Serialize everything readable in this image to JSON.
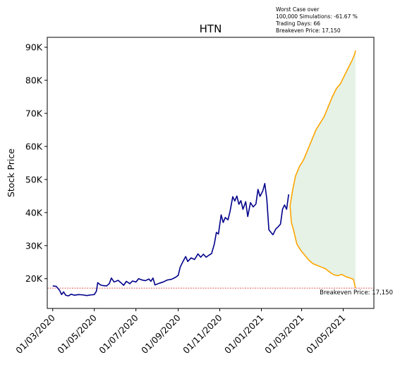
{
  "chart_data": {
    "type": "line",
    "title": "HTN",
    "xlabel": "",
    "ylabel": "Stock Price",
    "grid": false,
    "legend": "none",
    "x_date_range": [
      "2020-02-22",
      "2021-06-15"
    ],
    "ylim": [
      11000,
      93000
    ],
    "x_ticks": [
      {
        "date": "2020-03-01",
        "label": "01/03/2020"
      },
      {
        "date": "2020-05-01",
        "label": "01/05/2020"
      },
      {
        "date": "2020-07-01",
        "label": "01/07/2020"
      },
      {
        "date": "2020-09-01",
        "label": "01/09/2020"
      },
      {
        "date": "2020-11-01",
        "label": "01/11/2020"
      },
      {
        "date": "2021-01-01",
        "label": "01/01/2021"
      },
      {
        "date": "2021-03-01",
        "label": "01/03/2021"
      },
      {
        "date": "2021-05-01",
        "label": "01/05/2021"
      }
    ],
    "y_ticks": [
      {
        "value": 20000,
        "label": "20K"
      },
      {
        "value": 30000,
        "label": "30K"
      },
      {
        "value": 40000,
        "label": "40K"
      },
      {
        "value": 50000,
        "label": "50K"
      },
      {
        "value": 60000,
        "label": "60K"
      },
      {
        "value": 70000,
        "label": "70K"
      },
      {
        "value": 80000,
        "label": "80K"
      },
      {
        "value": 90000,
        "label": "90K"
      }
    ],
    "annotation_lines": [
      "Worst Case over",
      "100,000 Simulations: -61.67 %",
      "Trading Days: 66",
      "Breakeven Price: 17,150"
    ],
    "breakeven": {
      "value": 17150,
      "label": "Breakeven Price: 17,150"
    },
    "colors": {
      "history": "#00008b",
      "projection": "#ffa500",
      "band": "#e5f2e5",
      "breakeven": "#d62728"
    },
    "series": [
      {
        "role": "history",
        "points": [
          [
            "2020-03-01",
            17800
          ],
          [
            "2020-03-06",
            17700
          ],
          [
            "2020-03-11",
            16500
          ],
          [
            "2020-03-14",
            15200
          ],
          [
            "2020-03-17",
            16000
          ],
          [
            "2020-03-20",
            15000
          ],
          [
            "2020-03-24",
            14800
          ],
          [
            "2020-03-28",
            15300
          ],
          [
            "2020-04-02",
            15000
          ],
          [
            "2020-04-08",
            15200
          ],
          [
            "2020-04-14",
            15100
          ],
          [
            "2020-04-20",
            14900
          ],
          [
            "2020-04-26",
            15100
          ],
          [
            "2020-05-01",
            15200
          ],
          [
            "2020-05-04",
            16200
          ],
          [
            "2020-05-06",
            18800
          ],
          [
            "2020-05-10",
            18100
          ],
          [
            "2020-05-14",
            17900
          ],
          [
            "2020-05-19",
            17800
          ],
          [
            "2020-05-23",
            18500
          ],
          [
            "2020-05-26",
            20200
          ],
          [
            "2020-05-30",
            19000
          ],
          [
            "2020-06-05",
            19500
          ],
          [
            "2020-06-10",
            18600
          ],
          [
            "2020-06-13",
            18000
          ],
          [
            "2020-06-17",
            19200
          ],
          [
            "2020-06-22",
            18500
          ],
          [
            "2020-06-26",
            19300
          ],
          [
            "2020-07-01",
            19000
          ],
          [
            "2020-07-05",
            20000
          ],
          [
            "2020-07-10",
            19600
          ],
          [
            "2020-07-15",
            19400
          ],
          [
            "2020-07-20",
            19900
          ],
          [
            "2020-07-23",
            19200
          ],
          [
            "2020-07-26",
            20200
          ],
          [
            "2020-07-29",
            18100
          ],
          [
            "2020-08-04",
            18600
          ],
          [
            "2020-08-10",
            19000
          ],
          [
            "2020-08-16",
            19600
          ],
          [
            "2020-08-22",
            19800
          ],
          [
            "2020-08-28",
            20400
          ],
          [
            "2020-09-01",
            21000
          ],
          [
            "2020-09-04",
            23500
          ],
          [
            "2020-09-08",
            25200
          ],
          [
            "2020-09-12",
            26700
          ],
          [
            "2020-09-15",
            25200
          ],
          [
            "2020-09-20",
            26300
          ],
          [
            "2020-09-25",
            25800
          ],
          [
            "2020-09-30",
            27500
          ],
          [
            "2020-10-04",
            26500
          ],
          [
            "2020-10-08",
            27400
          ],
          [
            "2020-10-12",
            26500
          ],
          [
            "2020-10-16",
            27100
          ],
          [
            "2020-10-20",
            27600
          ],
          [
            "2020-10-24",
            30500
          ],
          [
            "2020-10-27",
            34000
          ],
          [
            "2020-10-30",
            33500
          ],
          [
            "2020-11-03",
            39300
          ],
          [
            "2020-11-06",
            37000
          ],
          [
            "2020-11-09",
            38500
          ],
          [
            "2020-11-13",
            37800
          ],
          [
            "2020-11-16",
            40300
          ],
          [
            "2020-11-20",
            44800
          ],
          [
            "2020-11-23",
            43500
          ],
          [
            "2020-11-26",
            45000
          ],
          [
            "2020-11-29",
            42500
          ],
          [
            "2020-12-02",
            43600
          ],
          [
            "2020-12-05",
            41000
          ],
          [
            "2020-12-09",
            43300
          ],
          [
            "2020-12-12",
            38800
          ],
          [
            "2020-12-16",
            43000
          ],
          [
            "2020-12-20",
            41700
          ],
          [
            "2020-12-24",
            42600
          ],
          [
            "2020-12-27",
            47000
          ],
          [
            "2020-12-30",
            44900
          ],
          [
            "2021-01-03",
            46500
          ],
          [
            "2021-01-06",
            48800
          ],
          [
            "2021-01-09",
            44000
          ],
          [
            "2021-01-12",
            34800
          ],
          [
            "2021-01-15",
            34000
          ],
          [
            "2021-01-18",
            33300
          ],
          [
            "2021-01-22",
            35000
          ],
          [
            "2021-01-26",
            35800
          ],
          [
            "2021-01-29",
            36500
          ],
          [
            "2021-02-01",
            41000
          ],
          [
            "2021-02-04",
            42300
          ],
          [
            "2021-02-07",
            41000
          ],
          [
            "2021-02-10",
            45500
          ]
        ]
      },
      {
        "role": "projection-upper",
        "points": [
          [
            "2021-02-12",
            42000
          ],
          [
            "2021-02-16",
            47000
          ],
          [
            "2021-02-20",
            51000
          ],
          [
            "2021-02-26",
            54000
          ],
          [
            "2021-03-04",
            56000
          ],
          [
            "2021-03-10",
            59000
          ],
          [
            "2021-03-16",
            62000
          ],
          [
            "2021-03-22",
            65000
          ],
          [
            "2021-03-28",
            67000
          ],
          [
            "2021-04-03",
            69000
          ],
          [
            "2021-04-09",
            72000
          ],
          [
            "2021-04-15",
            75000
          ],
          [
            "2021-04-21",
            77500
          ],
          [
            "2021-04-27",
            79000
          ],
          [
            "2021-05-03",
            81500
          ],
          [
            "2021-05-09",
            84000
          ],
          [
            "2021-05-14",
            86000
          ],
          [
            "2021-05-18",
            88000
          ],
          [
            "2021-05-19",
            89000
          ]
        ]
      },
      {
        "role": "projection-lower",
        "points": [
          [
            "2021-02-12",
            42000
          ],
          [
            "2021-02-14",
            37000
          ],
          [
            "2021-02-18",
            34000
          ],
          [
            "2021-02-22",
            30500
          ],
          [
            "2021-02-28",
            28500
          ],
          [
            "2021-03-06",
            27000
          ],
          [
            "2021-03-12",
            25500
          ],
          [
            "2021-03-18",
            24500
          ],
          [
            "2021-03-24",
            24000
          ],
          [
            "2021-03-30",
            23500
          ],
          [
            "2021-04-05",
            23000
          ],
          [
            "2021-04-11",
            22000
          ],
          [
            "2021-04-17",
            21200
          ],
          [
            "2021-04-23",
            20900
          ],
          [
            "2021-04-29",
            21300
          ],
          [
            "2021-05-05",
            20600
          ],
          [
            "2021-05-11",
            20200
          ],
          [
            "2021-05-16",
            19800
          ],
          [
            "2021-05-19",
            17150
          ]
        ]
      }
    ]
  }
}
